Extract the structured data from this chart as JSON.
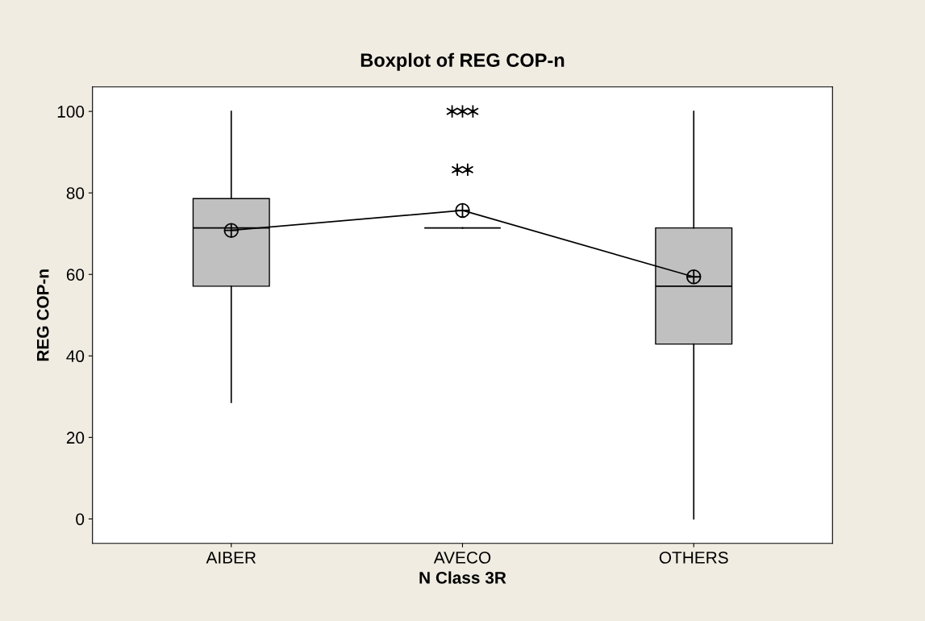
{
  "chart_data": {
    "type": "box",
    "title": "Boxplot of REG COP-n",
    "xlabel": "N Class 3R",
    "ylabel": "REG COP-n",
    "categories": [
      "AIBER",
      "AVECO",
      "OTHERS"
    ],
    "boxes": [
      {
        "low": 28.6,
        "q1": 57.1,
        "median": 71.4,
        "q3": 78.6,
        "high": 100,
        "mean": 70.8
      },
      {
        "low": 71.4,
        "q1": 71.4,
        "median": 71.4,
        "q3": 71.4,
        "high": 71.4,
        "mean": 75.7,
        "outliers": [
          100,
          100,
          100,
          85.7,
          85.7
        ]
      },
      {
        "low": 0,
        "q1": 42.9,
        "median": 57.1,
        "q3": 71.4,
        "high": 100,
        "mean": 59.4
      }
    ],
    "series": [
      {
        "type": "line",
        "color": "#000000",
        "values": [
          70.8,
          75.7,
          59.4
        ]
      }
    ],
    "color": "#c0c0c0",
    "ylim": [
      -6,
      106
    ],
    "yticks": [
      0,
      20,
      40,
      60,
      80,
      100
    ],
    "grid": false,
    "legend": false
  }
}
